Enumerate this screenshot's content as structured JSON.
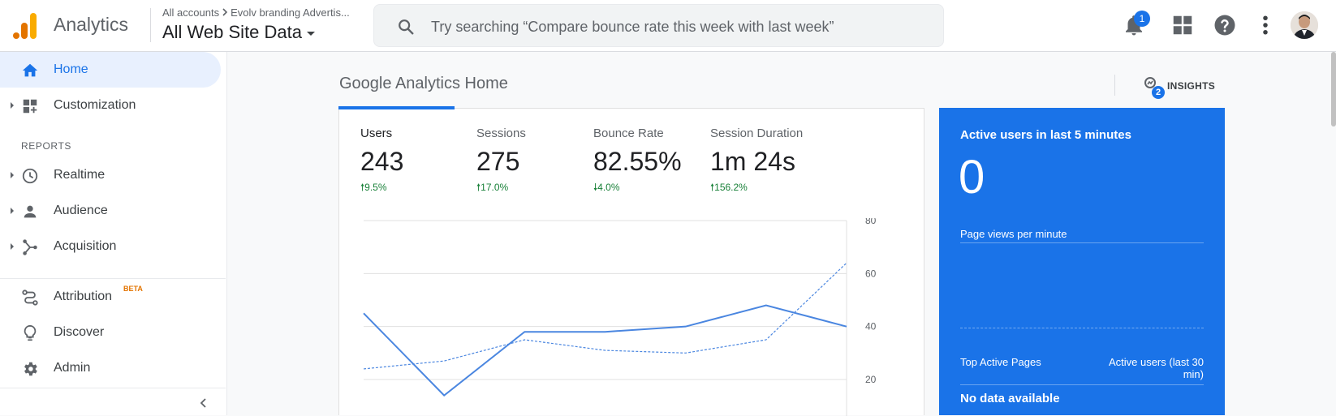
{
  "header": {
    "app_name": "Analytics",
    "breadcrumb_root": "All accounts",
    "breadcrumb_account": "Evolv branding Advertis...",
    "property": "All Web Site Data",
    "search_placeholder": "Try searching “Compare bounce rate this week with last week”",
    "notification_count": "1",
    "icons": [
      "search-icon",
      "bell-icon",
      "apps-grid-icon",
      "help-icon",
      "more-vert-icon"
    ]
  },
  "sidebar": {
    "items": [
      {
        "label": "Home",
        "icon": "home-icon",
        "active": true
      },
      {
        "label": "Customization",
        "icon": "dashboard-icon"
      },
      {
        "label": "Realtime",
        "icon": "clock-icon"
      },
      {
        "label": "Audience",
        "icon": "person-icon"
      },
      {
        "label": "Acquisition",
        "icon": "acquisition-icon"
      },
      {
        "label": "Attribution",
        "icon": "attribution-icon"
      },
      {
        "label": "Discover",
        "icon": "lightbulb-icon"
      },
      {
        "label": "Admin",
        "icon": "gear-icon"
      }
    ],
    "section_reports": "REPORTS",
    "beta_badge": "BETA"
  },
  "main": {
    "title": "Google Analytics Home",
    "insights_label": "INSIGHTS",
    "insights_count": "2",
    "metrics": [
      {
        "label": "Users",
        "value": "243",
        "change": "9.5%",
        "direction": "up"
      },
      {
        "label": "Sessions",
        "value": "275",
        "change": "17.0%",
        "direction": "up"
      },
      {
        "label": "Bounce Rate",
        "value": "82.55%",
        "change": "4.0%",
        "direction": "down"
      },
      {
        "label": "Session Duration",
        "value": "1m 24s",
        "change": "156.2%",
        "direction": "up"
      }
    ]
  },
  "chart_data": {
    "type": "line",
    "y_ticks": [
      "80",
      "60",
      "40",
      "20"
    ],
    "ylim": [
      20,
      80
    ],
    "series": [
      {
        "values": [
          45,
          14,
          38,
          38,
          40,
          48,
          40
        ],
        "style": "solid",
        "color": "#4a86e0"
      },
      {
        "values": [
          24,
          27,
          35,
          31,
          30,
          35,
          64
        ],
        "style": "dashed",
        "color": "#4a86e0"
      }
    ]
  },
  "realtime": {
    "title": "Active users in last 5 minutes",
    "value": "0",
    "page_views_label": "Page views per minute",
    "col_top_pages": "Top Active Pages",
    "col_active_users": "Active users (last 30 min)",
    "no_data": "No data available"
  }
}
